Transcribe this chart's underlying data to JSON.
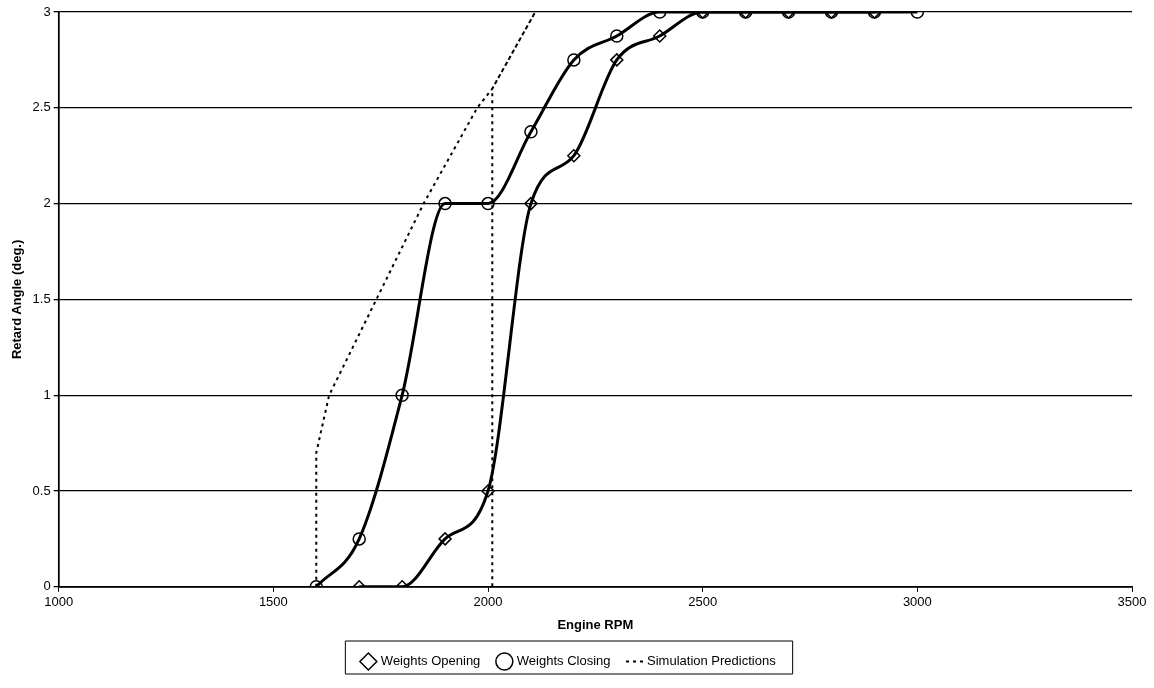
{
  "chart_data": {
    "type": "line",
    "xlabel": "Engine RPM",
    "ylabel": "Retard Angle (deg.)",
    "xlim": [
      1000,
      3500
    ],
    "xticks": [
      1000,
      1500,
      2000,
      2500,
      3000,
      3500
    ],
    "ylim": [
      0,
      3
    ],
    "yticks": [
      0,
      0.5,
      1,
      1.5,
      2,
      2.5,
      3
    ],
    "grid": "y",
    "legend": "bottom",
    "series": [
      {
        "name": "Weights Opening",
        "color": "#000000",
        "marker": "diamond",
        "line_style": "solid",
        "x": [
          1700,
          1800,
          1900,
          2000,
          2100,
          2200,
          2300,
          2400,
          2500,
          2600,
          2700,
          2800,
          2900
        ],
        "values": [
          0,
          0,
          0.25,
          0.5,
          2,
          2.25,
          2.75,
          2.875,
          3,
          3,
          3,
          3,
          3
        ]
      },
      {
        "name": "Weights Closing",
        "color": "#000000",
        "marker": "circle",
        "line_style": "solid",
        "x": [
          1600,
          1700,
          1800,
          1900,
          2000,
          2100,
          2200,
          2300,
          2400,
          2500,
          2600,
          2700,
          2800,
          2900,
          3000
        ],
        "values": [
          0,
          0.25,
          1,
          2,
          2,
          2.375,
          2.75,
          2.875,
          3,
          3,
          3,
          3,
          3,
          3,
          3
        ]
      },
      {
        "name": "Simulation Predictions",
        "color": "#000000",
        "marker": "none",
        "line_style": "dotted",
        "x": [
          1600,
          1600,
          1630,
          1740,
          1850,
          1975,
          2010,
          2110,
          2010,
          2010
        ],
        "values": [
          0,
          0.7,
          1,
          1.5,
          2,
          2.5,
          2.6,
          3,
          2.6,
          0
        ]
      }
    ]
  }
}
